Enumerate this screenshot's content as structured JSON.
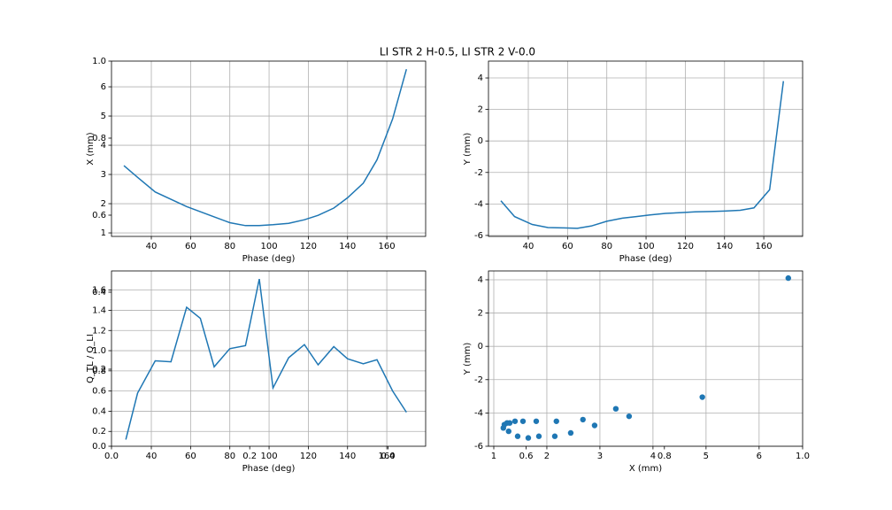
{
  "title": "LI STR 2 H-0.5, LI STR 2 V-0.0",
  "chart_data": [
    {
      "type": "line",
      "xlabel": "Phase (deg)",
      "ylabel": "X (mm)",
      "color": "#1f77b4",
      "grid": true,
      "x": [
        26,
        33,
        42,
        58,
        72,
        80,
        88,
        95,
        102,
        110,
        118,
        125,
        133,
        140,
        148,
        155,
        163,
        170
      ],
      "values": [
        3.3,
        2.9,
        2.4,
        1.9,
        1.55,
        1.35,
        1.25,
        1.25,
        1.28,
        1.33,
        1.45,
        1.6,
        1.85,
        2.2,
        2.7,
        3.5,
        4.9,
        6.6
      ],
      "xlim": [
        19.7,
        179.8
      ],
      "xticks": [
        40,
        60,
        80,
        100,
        120,
        140,
        160
      ],
      "ylim": [
        0.88,
        6.88
      ],
      "yticks": [
        1,
        2,
        3,
        4,
        5,
        6
      ]
    },
    {
      "type": "line",
      "xlabel": "Phase (deg)",
      "ylabel": "Y (mm)",
      "color": "#1f77b4",
      "grid": true,
      "x": [
        26,
        33,
        42,
        50,
        58,
        65,
        72,
        80,
        88,
        95,
        102,
        110,
        118,
        125,
        133,
        140,
        148,
        155,
        163,
        170
      ],
      "values": [
        -3.8,
        -4.8,
        -5.3,
        -5.5,
        -5.52,
        -5.55,
        -5.4,
        -5.1,
        -4.9,
        -4.8,
        -4.7,
        -4.6,
        -4.55,
        -4.5,
        -4.48,
        -4.45,
        -4.4,
        -4.25,
        -3.1,
        3.8
      ],
      "xlim": [
        19.7,
        179.8
      ],
      "xticks": [
        40,
        60,
        80,
        100,
        120,
        140,
        160
      ],
      "ylim": [
        -6.06,
        5.07
      ],
      "yticks": [
        -6,
        -4,
        -2,
        0,
        2,
        4
      ]
    },
    {
      "type": "line",
      "xlabel": "Phase (deg)",
      "ylabel": "Q_TL / Q_LI",
      "color": "#1f77b4",
      "grid": true,
      "x": [
        27,
        33,
        42,
        50,
        58,
        65,
        72,
        80,
        88,
        95,
        102,
        110,
        118,
        125,
        133,
        140,
        148,
        155,
        163,
        170
      ],
      "values": [
        0.12,
        0.58,
        0.9,
        0.89,
        1.43,
        1.32,
        0.84,
        1.02,
        1.05,
        1.71,
        0.63,
        0.93,
        1.06,
        0.86,
        1.04,
        0.92,
        0.87,
        0.91,
        0.6,
        0.39
      ],
      "xlim": [
        19.7,
        179.8
      ],
      "xticks": [
        40,
        60,
        80,
        100,
        120,
        140,
        160
      ],
      "ylim": [
        0.053,
        1.79
      ],
      "yticks": [
        0.2,
        0.4,
        0.6,
        0.8,
        {
          "value": 1.0,
          "label": "1.0"
        },
        1.2,
        1.4,
        1.6
      ]
    },
    {
      "type": "scatter",
      "xlabel": "X (mm)",
      "ylabel": "Y (mm)",
      "color": "#1f77b4",
      "grid": true,
      "x": [
        1.18,
        1.2,
        1.25,
        1.28,
        1.3,
        1.4,
        1.45,
        1.55,
        1.65,
        1.8,
        1.85,
        2.15,
        2.18,
        2.45,
        2.68,
        2.9,
        3.3,
        3.55,
        4.93,
        6.55
      ],
      "values": [
        -4.9,
        -4.7,
        -4.6,
        -5.1,
        -4.6,
        -4.5,
        -5.4,
        -4.5,
        -5.5,
        -4.5,
        -5.4,
        -5.4,
        -4.5,
        -5.2,
        -4.4,
        -4.75,
        -3.75,
        -4.2,
        -3.05,
        4.1
      ],
      "xlim": [
        0.9,
        6.82
      ],
      "xticks": [
        1,
        2,
        3,
        4,
        5,
        6
      ],
      "ylim": [
        -6.0,
        4.53
      ],
      "yticks": [
        -6,
        -4,
        -2,
        0,
        2,
        4
      ]
    },
    {
      "type": "axes",
      "grid": false,
      "xlim": [
        0,
        1
      ],
      "xticks": [
        {
          "value": 0,
          "label": "0.0"
        },
        0.2,
        0.4,
        0.6,
        0.8,
        {
          "value": 1,
          "label": "1.0"
        }
      ],
      "ylim": [
        0,
        1
      ],
      "yticks": [
        {
          "value": 0,
          "label": "0.0"
        },
        0.2,
        0.4,
        0.6,
        0.8,
        {
          "value": 1,
          "label": "1.0"
        }
      ]
    }
  ]
}
